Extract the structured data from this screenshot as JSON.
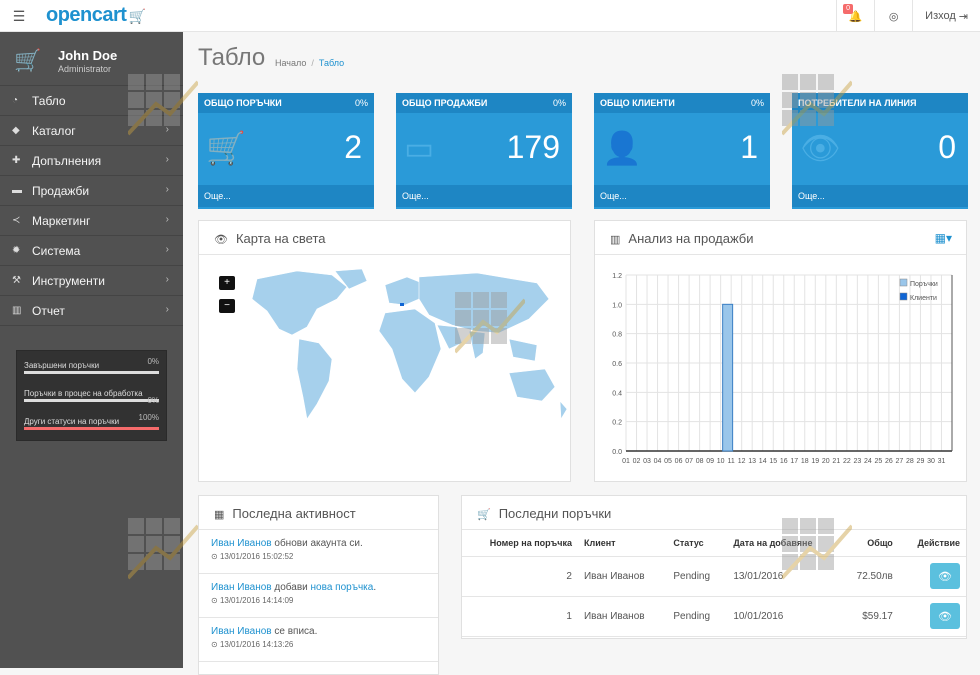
{
  "header": {
    "logo": "opencart",
    "notification_count": "0",
    "logout_label": "Изход"
  },
  "sidebar": {
    "user_name": "John Doe",
    "user_role": "Administrator",
    "items": [
      {
        "label": "Табло",
        "icon": "dashboard-icon"
      },
      {
        "label": "Каталог",
        "icon": "tag-icon"
      },
      {
        "label": "Допълнения",
        "icon": "puzzle-icon"
      },
      {
        "label": "Продажби",
        "icon": "cart-icon"
      },
      {
        "label": "Маркетинг",
        "icon": "share-icon"
      },
      {
        "label": "Система",
        "icon": "gear-icon"
      },
      {
        "label": "Инструменти",
        "icon": "wrench-icon"
      },
      {
        "label": "Отчет",
        "icon": "bar-chart-icon"
      }
    ],
    "progress": [
      {
        "label": "Завършени поръчки",
        "pct": "0%",
        "fraction": 0
      },
      {
        "label": "Поръчки в процес на обработка",
        "pct": "0%",
        "fraction": 0
      },
      {
        "label": "Други статуси на поръчки",
        "pct": "100%",
        "fraction": 1
      }
    ]
  },
  "page": {
    "title": "Табло",
    "breadcrumb": [
      "Начало",
      "Табло"
    ]
  },
  "tiles": [
    {
      "title": "ОБЩО ПОРЪЧКИ",
      "pct": "0%",
      "value": "2",
      "more": "Още...",
      "icon": "cart-icon"
    },
    {
      "title": "ОБЩО ПРОДАЖБИ",
      "pct": "0%",
      "value": "179",
      "more": "Още...",
      "icon": "credit-card-icon"
    },
    {
      "title": "ОБЩО КЛИЕНТИ",
      "pct": "0%",
      "value": "1",
      "more": "Още...",
      "icon": "user-icon"
    },
    {
      "title": "ПОТРЕБИТЕЛИ НА ЛИНИЯ",
      "pct": "",
      "value": "0",
      "more": "Още...",
      "icon": "eye-icon"
    }
  ],
  "map_panel": {
    "title": "Карта на света",
    "zoom_in": "+",
    "zoom_out": "−"
  },
  "sales_panel": {
    "title": "Анализ на продажби"
  },
  "chart_data": {
    "type": "bar",
    "categories": [
      "01",
      "02",
      "03",
      "04",
      "05",
      "06",
      "07",
      "08",
      "09",
      "10",
      "11",
      "12",
      "13",
      "14",
      "15",
      "16",
      "17",
      "18",
      "19",
      "20",
      "21",
      "22",
      "23",
      "24",
      "25",
      "26",
      "27",
      "28",
      "29",
      "30",
      "31"
    ],
    "series": [
      {
        "name": "Поръчки",
        "values": [
          0,
          0,
          0,
          0,
          0,
          0,
          0,
          0,
          0,
          1.0,
          0,
          0,
          0,
          0,
          0,
          0,
          0,
          0,
          0,
          0,
          0,
          0,
          0,
          0,
          0,
          0,
          0,
          0,
          0,
          0,
          0
        ],
        "color": "#9ac6ea"
      },
      {
        "name": "Клиенти",
        "values": [
          0,
          0,
          0,
          0,
          0,
          0,
          0,
          0,
          0,
          0,
          0,
          0,
          0,
          0,
          0,
          0,
          0,
          0,
          0,
          0,
          0,
          0,
          0,
          0,
          0,
          0,
          0,
          0,
          0,
          0,
          0
        ],
        "color": "#1065d4"
      }
    ],
    "yticks": [
      "0.0",
      "0.2",
      "0.4",
      "0.6",
      "0.8",
      "1.0",
      "1.2"
    ],
    "ylim": [
      0,
      1.2
    ],
    "legend": "top-right",
    "grid": true
  },
  "activity_panel": {
    "title": "Последна активност",
    "items": [
      {
        "who": "Иван Иванов",
        "text": " обнови акаунта си.",
        "link": "",
        "end": "",
        "time": "13/01/2016 15:02:52"
      },
      {
        "who": "Иван Иванов",
        "text": " добави ",
        "link": "нова поръчка",
        "end": ".",
        "time": "13/01/2016 14:14:09"
      },
      {
        "who": "Иван Иванов",
        "text": " се вписа.",
        "link": "",
        "end": "",
        "time": "13/01/2016 14:13:26"
      }
    ]
  },
  "orders_panel": {
    "title": "Последни поръчки",
    "columns": [
      "Номер на поръчка",
      "Клиент",
      "Статус",
      "Дата на добавяне",
      "Общо",
      "Действие"
    ],
    "rows": [
      {
        "id": "2",
        "customer": "Иван Иванов",
        "status": "Pending",
        "date": "13/01/2016",
        "total": "72.50лв"
      },
      {
        "id": "1",
        "customer": "Иван Иванов",
        "status": "Pending",
        "date": "10/01/2016",
        "total": "$59.17"
      }
    ]
  }
}
